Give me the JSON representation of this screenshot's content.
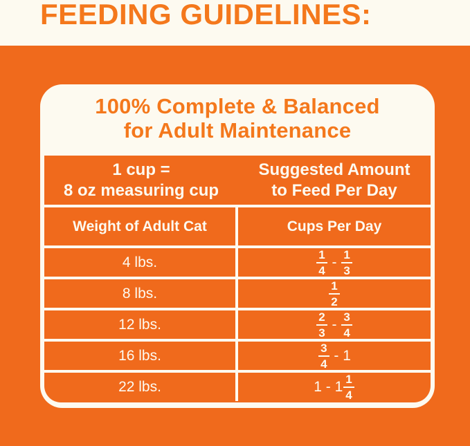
{
  "heading": "FEEDING GUIDELINES:",
  "colors": {
    "orange": "#F06A1C",
    "orange-text": "#F4781C",
    "cream": "#FDFAF0"
  },
  "card": {
    "title_line1": "100% Complete & Balanced",
    "title_line2": "for Adult Maintenance"
  },
  "table": {
    "header1": {
      "left_line1": "1 cup =",
      "left_line2": "8 oz measuring cup",
      "right_line1": "Suggested Amount",
      "right_line2": "to Feed Per Day"
    },
    "header2": {
      "left": "Weight of Adult Cat",
      "right": "Cups Per Day"
    },
    "rows": [
      {
        "weight": "4 lbs.",
        "cups": [
          {
            "num": "1",
            "den": "4"
          },
          {
            "text": " - "
          },
          {
            "num": "1",
            "den": "3"
          }
        ]
      },
      {
        "weight": "8 lbs.",
        "cups": [
          {
            "num": "1",
            "den": "2"
          }
        ]
      },
      {
        "weight": "12 lbs.",
        "cups": [
          {
            "num": "2",
            "den": "3"
          },
          {
            "text": " - "
          },
          {
            "num": "3",
            "den": "4"
          }
        ]
      },
      {
        "weight": "16 lbs.",
        "cups": [
          {
            "num": "3",
            "den": "4"
          },
          {
            "text": " - 1"
          }
        ]
      },
      {
        "weight": "22 lbs.",
        "cups": [
          {
            "text": "1 - 1"
          },
          {
            "num": "1",
            "den": "4"
          }
        ]
      }
    ]
  }
}
